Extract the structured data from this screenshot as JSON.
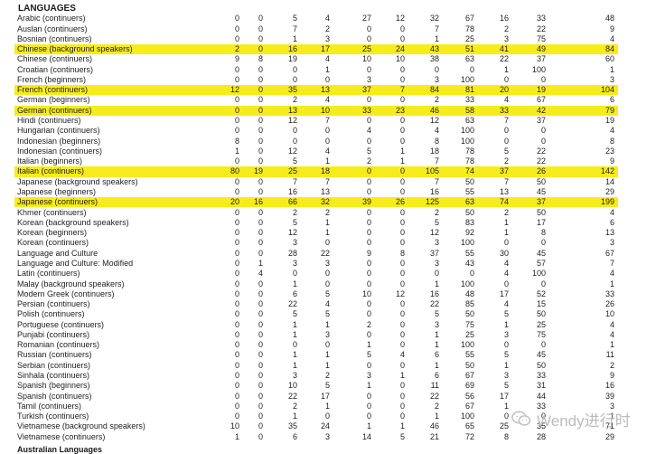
{
  "heading": "LANGUAGES",
  "footer_partial": "Australian Languages",
  "watermark": "Wendy进行时",
  "highlight_color": "#f7ec1b",
  "rows": [
    {
      "name": "Arabic (continuers)",
      "v": [
        "0",
        "0",
        "5",
        "4",
        "27",
        "12",
        "32",
        "67",
        "16",
        "33",
        "48"
      ],
      "hl": false
    },
    {
      "name": "Auslan (continuers)",
      "v": [
        "0",
        "0",
        "7",
        "2",
        "0",
        "0",
        "7",
        "78",
        "2",
        "22",
        "9"
      ],
      "hl": false
    },
    {
      "name": "Bosnian (continuers)",
      "v": [
        "0",
        "0",
        "1",
        "3",
        "0",
        "0",
        "1",
        "25",
        "3",
        "75",
        "4"
      ],
      "hl": false
    },
    {
      "name": "Chinese (background speakers)",
      "v": [
        "2",
        "0",
        "16",
        "17",
        "25",
        "24",
        "43",
        "51",
        "41",
        "49",
        "84"
      ],
      "hl": true
    },
    {
      "name": "Chinese (continuers)",
      "v": [
        "9",
        "8",
        "19",
        "4",
        "10",
        "10",
        "38",
        "63",
        "22",
        "37",
        "60"
      ],
      "hl": false
    },
    {
      "name": "Croatian (continuers)",
      "v": [
        "0",
        "0",
        "0",
        "1",
        "0",
        "0",
        "0",
        "0",
        "1",
        "100",
        "1"
      ],
      "hl": false
    },
    {
      "name": "French (beginners)",
      "v": [
        "0",
        "0",
        "0",
        "0",
        "3",
        "0",
        "3",
        "100",
        "0",
        "0",
        "3"
      ],
      "hl": false
    },
    {
      "name": "French (continuers)",
      "v": [
        "12",
        "0",
        "35",
        "13",
        "37",
        "7",
        "84",
        "81",
        "20",
        "19",
        "104"
      ],
      "hl": true
    },
    {
      "name": "German (beginners)",
      "v": [
        "0",
        "0",
        "2",
        "4",
        "0",
        "0",
        "2",
        "33",
        "4",
        "67",
        "6"
      ],
      "hl": false
    },
    {
      "name": "German (continuers)",
      "v": [
        "0",
        "0",
        "13",
        "10",
        "33",
        "23",
        "46",
        "58",
        "33",
        "42",
        "79"
      ],
      "hl": true
    },
    {
      "name": "Hindi (continuers)",
      "v": [
        "0",
        "0",
        "12",
        "7",
        "0",
        "0",
        "12",
        "63",
        "7",
        "37",
        "19"
      ],
      "hl": false
    },
    {
      "name": "Hungarian (continuers)",
      "v": [
        "0",
        "0",
        "0",
        "0",
        "4",
        "0",
        "4",
        "100",
        "0",
        "0",
        "4"
      ],
      "hl": false
    },
    {
      "name": "Indonesian (beginners)",
      "v": [
        "8",
        "0",
        "0",
        "0",
        "0",
        "0",
        "8",
        "100",
        "0",
        "0",
        "8"
      ],
      "hl": false
    },
    {
      "name": "Indonesian (continuers)",
      "v": [
        "1",
        "0",
        "12",
        "4",
        "5",
        "1",
        "18",
        "78",
        "5",
        "22",
        "23"
      ],
      "hl": false
    },
    {
      "name": "Italian (beginners)",
      "v": [
        "0",
        "0",
        "5",
        "1",
        "2",
        "1",
        "7",
        "78",
        "2",
        "22",
        "9"
      ],
      "hl": false
    },
    {
      "name": "Italian (continuers)",
      "v": [
        "80",
        "19",
        "25",
        "18",
        "0",
        "0",
        "105",
        "74",
        "37",
        "26",
        "142"
      ],
      "hl": true
    },
    {
      "name": "Japanese (background speakers)",
      "v": [
        "0",
        "0",
        "7",
        "7",
        "0",
        "0",
        "7",
        "50",
        "7",
        "50",
        "14"
      ],
      "hl": false
    },
    {
      "name": "Japanese (beginners)",
      "v": [
        "0",
        "0",
        "16",
        "13",
        "0",
        "0",
        "16",
        "55",
        "13",
        "45",
        "29"
      ],
      "hl": false
    },
    {
      "name": "Japanese (continuers)",
      "v": [
        "20",
        "16",
        "66",
        "32",
        "39",
        "26",
        "125",
        "63",
        "74",
        "37",
        "199"
      ],
      "hl": true
    },
    {
      "name": "Khmer (continuers)",
      "v": [
        "0",
        "0",
        "2",
        "2",
        "0",
        "0",
        "2",
        "50",
        "2",
        "50",
        "4"
      ],
      "hl": false
    },
    {
      "name": "Korean (background speakers)",
      "v": [
        "0",
        "0",
        "5",
        "1",
        "0",
        "0",
        "5",
        "83",
        "1",
        "17",
        "6"
      ],
      "hl": false
    },
    {
      "name": "Korean (beginners)",
      "v": [
        "0",
        "0",
        "12",
        "1",
        "0",
        "0",
        "12",
        "92",
        "1",
        "8",
        "13"
      ],
      "hl": false
    },
    {
      "name": "Korean (continuers)",
      "v": [
        "0",
        "0",
        "3",
        "0",
        "0",
        "0",
        "3",
        "100",
        "0",
        "0",
        "3"
      ],
      "hl": false
    },
    {
      "name": "Language and Culture",
      "v": [
        "0",
        "0",
        "28",
        "22",
        "9",
        "8",
        "37",
        "55",
        "30",
        "45",
        "67"
      ],
      "hl": false
    },
    {
      "name": "Language and Culture: Modified",
      "v": [
        "0",
        "1",
        "3",
        "3",
        "0",
        "0",
        "3",
        "43",
        "4",
        "57",
        "7"
      ],
      "hl": false
    },
    {
      "name": "Latin (continuers)",
      "v": [
        "0",
        "4",
        "0",
        "0",
        "0",
        "0",
        "0",
        "0",
        "4",
        "100",
        "4"
      ],
      "hl": false
    },
    {
      "name": "Malay (background speakers)",
      "v": [
        "0",
        "0",
        "1",
        "0",
        "0",
        "0",
        "1",
        "100",
        "0",
        "0",
        "1"
      ],
      "hl": false
    },
    {
      "name": "Modern Greek (continuers)",
      "v": [
        "0",
        "0",
        "6",
        "5",
        "10",
        "12",
        "16",
        "48",
        "17",
        "52",
        "33"
      ],
      "hl": false
    },
    {
      "name": "Persian (continuers)",
      "v": [
        "0",
        "0",
        "22",
        "4",
        "0",
        "0",
        "22",
        "85",
        "4",
        "15",
        "26"
      ],
      "hl": false
    },
    {
      "name": "Polish (continuers)",
      "v": [
        "0",
        "0",
        "5",
        "5",
        "0",
        "0",
        "5",
        "50",
        "5",
        "50",
        "10"
      ],
      "hl": false
    },
    {
      "name": "Portuguese (continuers)",
      "v": [
        "0",
        "0",
        "1",
        "1",
        "2",
        "0",
        "3",
        "75",
        "1",
        "25",
        "4"
      ],
      "hl": false
    },
    {
      "name": "Punjabi (continuers)",
      "v": [
        "0",
        "0",
        "1",
        "3",
        "0",
        "0",
        "1",
        "25",
        "3",
        "75",
        "4"
      ],
      "hl": false
    },
    {
      "name": "Romanian (continuers)",
      "v": [
        "0",
        "0",
        "0",
        "0",
        "1",
        "0",
        "1",
        "100",
        "0",
        "0",
        "1"
      ],
      "hl": false
    },
    {
      "name": "Russian (continuers)",
      "v": [
        "0",
        "0",
        "1",
        "1",
        "5",
        "4",
        "6",
        "55",
        "5",
        "45",
        "11"
      ],
      "hl": false
    },
    {
      "name": "Serbian (continuers)",
      "v": [
        "0",
        "0",
        "1",
        "1",
        "0",
        "0",
        "1",
        "50",
        "1",
        "50",
        "2"
      ],
      "hl": false
    },
    {
      "name": "Sinhala (continuers)",
      "v": [
        "0",
        "0",
        "3",
        "2",
        "3",
        "1",
        "6",
        "67",
        "3",
        "33",
        "9"
      ],
      "hl": false
    },
    {
      "name": "Spanish (beginners)",
      "v": [
        "0",
        "0",
        "10",
        "5",
        "1",
        "0",
        "11",
        "69",
        "5",
        "31",
        "16"
      ],
      "hl": false
    },
    {
      "name": "Spanish (continuers)",
      "v": [
        "0",
        "0",
        "22",
        "17",
        "0",
        "0",
        "22",
        "56",
        "17",
        "44",
        "39"
      ],
      "hl": false
    },
    {
      "name": "Tamil (continuers)",
      "v": [
        "0",
        "0",
        "2",
        "1",
        "0",
        "0",
        "2",
        "67",
        "1",
        "33",
        "3"
      ],
      "hl": false
    },
    {
      "name": "Turkish (continuers)",
      "v": [
        "0",
        "0",
        "1",
        "0",
        "0",
        "0",
        "1",
        "100",
        "0",
        "0",
        "1"
      ],
      "hl": false
    },
    {
      "name": "Vietnamese (background speakers)",
      "v": [
        "10",
        "0",
        "35",
        "24",
        "1",
        "1",
        "46",
        "65",
        "25",
        "35",
        "71"
      ],
      "hl": false
    },
    {
      "name": "Vietnamese (continuers)",
      "v": [
        "1",
        "0",
        "6",
        "3",
        "14",
        "5",
        "21",
        "72",
        "8",
        "28",
        "29"
      ],
      "hl": false
    }
  ]
}
